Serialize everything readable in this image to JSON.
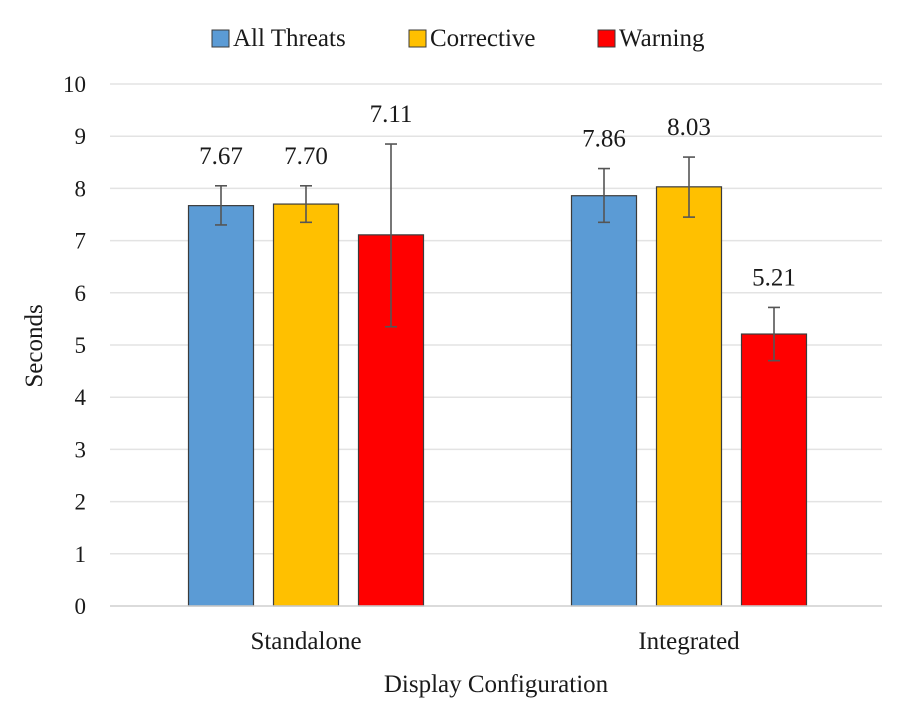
{
  "chart_data": {
    "type": "bar",
    "categories": [
      "Standalone",
      "Integrated"
    ],
    "series": [
      {
        "name": "All Threats",
        "color": "#5b9bd5",
        "values": [
          7.67,
          7.86
        ],
        "labels": [
          "7.67",
          "7.86"
        ],
        "error_low": [
          7.3,
          7.35
        ],
        "error_high": [
          8.05,
          8.38
        ]
      },
      {
        "name": "Corrective",
        "color": "#ffc000",
        "values": [
          7.7,
          8.03
        ],
        "labels": [
          "7.70",
          "8.03"
        ],
        "error_low": [
          7.35,
          7.45
        ],
        "error_high": [
          8.05,
          8.6
        ]
      },
      {
        "name": "Warning",
        "color": "#ff0000",
        "values": [
          7.11,
          5.21
        ],
        "labels": [
          "7.11",
          "5.21"
        ],
        "error_low": [
          5.35,
          4.7
        ],
        "error_high": [
          8.85,
          5.72
        ]
      }
    ],
    "xlabel": "Display Configuration",
    "ylabel": "Seconds",
    "ylim": [
      0,
      10
    ],
    "yticks": [
      "0",
      "1",
      "2",
      "3",
      "4",
      "5",
      "6",
      "7",
      "8",
      "9",
      "10"
    ],
    "grid": true,
    "legend_position": "top"
  }
}
